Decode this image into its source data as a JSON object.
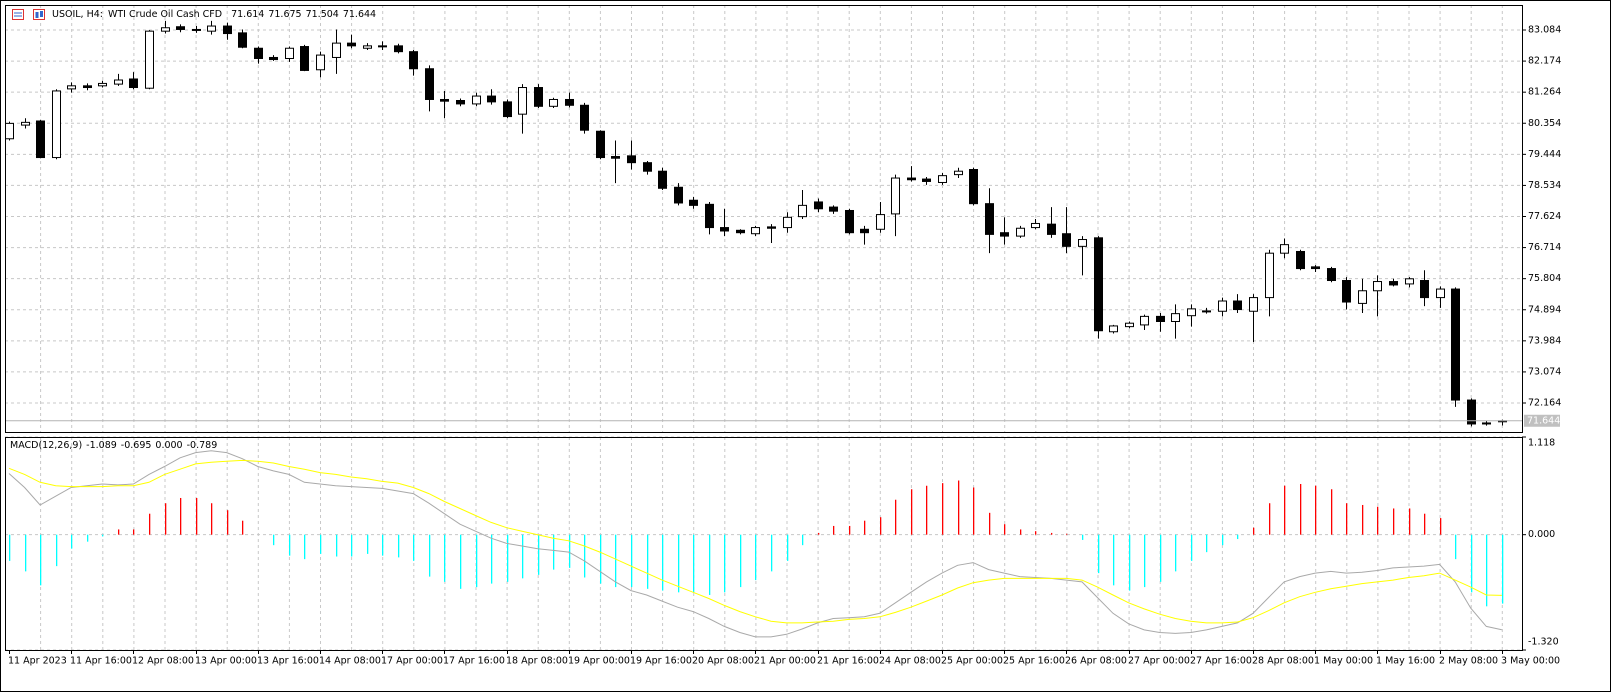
{
  "chart_data": [
    {
      "type": "candlestick",
      "title": "USOIL, H4:",
      "subtitle": "WTI Crude Oil Cash CFD",
      "categories": [
        "11 Apr 2023",
        null,
        null,
        null,
        "11 Apr 16:00",
        null,
        null,
        null,
        "12 Apr 08:00",
        null,
        null,
        null,
        "13 Apr 00:00",
        null,
        null,
        null,
        "13 Apr 16:00",
        null,
        null,
        null,
        "14 Apr 08:00",
        null,
        null,
        null,
        "17 Apr 00:00",
        null,
        null,
        null,
        "17 Apr 16:00",
        null,
        null,
        null,
        "18 Apr 08:00",
        null,
        null,
        null,
        "19 Apr 00:00",
        null,
        null,
        null,
        "19 Apr 16:00",
        null,
        null,
        null,
        "20 Apr 08:00",
        null,
        null,
        null,
        "21 Apr 00:00",
        null,
        null,
        null,
        "21 Apr 16:00",
        null,
        null,
        null,
        "24 Apr 08:00",
        null,
        null,
        null,
        "25 Apr 00:00",
        null,
        null,
        null,
        "25 Apr 16:00",
        null,
        null,
        null,
        "26 Apr 08:00",
        null,
        null,
        null,
        "27 Apr 00:00",
        null,
        null,
        null,
        "27 Apr 16:00",
        null,
        null,
        null,
        "28 Apr 08:00",
        null,
        null,
        null,
        "1 May 00:00",
        null,
        null,
        null,
        "1 May 16:00",
        null,
        null,
        null,
        "2 May 08:00",
        null,
        null,
        null,
        "3 May 00:00"
      ],
      "open": [
        79.9,
        80.3,
        80.42,
        79.35,
        81.36,
        81.45,
        81.45,
        81.5,
        81.65,
        81.38,
        83.05,
        83.18,
        83.1,
        83.05,
        83.2,
        83.0,
        82.55,
        82.28,
        82.25,
        82.6,
        81.92,
        82.28,
        82.7,
        82.55,
        82.6,
        82.62,
        82.45,
        81.95,
        81.05,
        81.02,
        80.92,
        81.15,
        80.98,
        80.62,
        81.4,
        80.85,
        81.05,
        80.88,
        80.12,
        79.38,
        79.4,
        79.2,
        78.95,
        78.48,
        78.1,
        77.98,
        77.3,
        77.22,
        77.12,
        77.32,
        77.3,
        77.62,
        78.05,
        77.9,
        77.8,
        77.25,
        77.25,
        77.7,
        78.75,
        78.72,
        78.62,
        78.85,
        79.0,
        78.0,
        77.15,
        77.05,
        77.3,
        77.4,
        77.12,
        76.75,
        77.0,
        74.25,
        74.4,
        74.45,
        74.7,
        74.55,
        74.72,
        74.86,
        74.85,
        75.15,
        74.85,
        75.25,
        76.55,
        76.6,
        76.15,
        76.1,
        75.75,
        75.08,
        75.45,
        75.72,
        75.65,
        75.75,
        75.25,
        75.5,
        72.25,
        71.58,
        71.614
      ],
      "high": [
        80.4,
        80.5,
        80.45,
        81.35,
        81.55,
        81.52,
        81.6,
        81.8,
        81.85,
        83.08,
        83.35,
        83.25,
        83.2,
        83.35,
        83.3,
        83.1,
        82.6,
        82.35,
        82.6,
        82.65,
        82.45,
        83.1,
        82.95,
        82.7,
        82.75,
        82.68,
        82.5,
        82.05,
        81.3,
        81.08,
        81.25,
        81.35,
        81.05,
        81.5,
        81.5,
        81.1,
        81.25,
        80.95,
        80.15,
        79.85,
        79.85,
        79.25,
        79.05,
        78.6,
        78.2,
        78.05,
        77.85,
        77.25,
        77.35,
        77.4,
        77.75,
        78.4,
        78.15,
        77.95,
        77.85,
        77.35,
        78.05,
        78.85,
        79.1,
        78.78,
        78.9,
        79.05,
        79.05,
        78.45,
        77.6,
        77.35,
        77.55,
        77.9,
        77.9,
        77.05,
        77.05,
        74.45,
        74.55,
        74.75,
        74.8,
        75.05,
        75.05,
        74.95,
        75.25,
        75.35,
        75.35,
        76.65,
        76.98,
        76.65,
        76.2,
        76.15,
        75.85,
        75.8,
        75.9,
        75.8,
        75.85,
        76.05,
        75.58,
        75.55,
        72.3,
        71.65,
        71.675
      ],
      "low": [
        79.85,
        80.2,
        79.33,
        79.3,
        81.25,
        81.32,
        81.4,
        81.45,
        81.35,
        81.35,
        82.98,
        83.02,
        83.0,
        82.95,
        82.8,
        82.55,
        82.1,
        82.18,
        82.15,
        81.88,
        81.7,
        81.8,
        82.55,
        82.5,
        82.5,
        82.4,
        81.75,
        80.7,
        80.5,
        80.85,
        80.85,
        80.9,
        80.5,
        80.05,
        80.8,
        80.8,
        80.82,
        80.05,
        79.3,
        78.6,
        79.0,
        78.85,
        78.4,
        77.95,
        77.85,
        77.1,
        77.05,
        77.1,
        77.05,
        76.85,
        77.15,
        77.55,
        77.75,
        77.7,
        77.1,
        76.8,
        77.15,
        77.05,
        78.65,
        78.55,
        78.55,
        78.75,
        77.95,
        76.55,
        76.8,
        77.0,
        77.25,
        77.0,
        76.55,
        75.9,
        74.05,
        74.2,
        74.35,
        74.3,
        74.25,
        74.05,
        74.4,
        74.78,
        74.7,
        74.8,
        73.95,
        74.7,
        76.4,
        76.05,
        76.0,
        75.7,
        74.9,
        74.8,
        74.7,
        75.58,
        75.55,
        75.0,
        74.95,
        72.05,
        71.48,
        71.5,
        71.504
      ],
      "close": [
        80.35,
        80.38,
        79.35,
        81.3,
        81.45,
        81.4,
        81.52,
        81.62,
        81.4,
        83.05,
        83.15,
        83.1,
        83.08,
        83.2,
        82.98,
        82.58,
        82.25,
        82.22,
        82.55,
        81.9,
        82.35,
        82.7,
        82.62,
        82.62,
        82.62,
        82.45,
        81.95,
        81.05,
        81.0,
        80.92,
        81.15,
        80.98,
        80.55,
        81.4,
        80.85,
        81.05,
        80.88,
        80.15,
        79.35,
        79.33,
        79.2,
        78.95,
        78.45,
        78.02,
        77.95,
        77.3,
        77.2,
        77.15,
        77.3,
        77.28,
        77.6,
        77.95,
        77.85,
        77.78,
        77.15,
        77.15,
        77.68,
        78.75,
        78.7,
        78.65,
        78.82,
        78.95,
        78.0,
        77.1,
        77.05,
        77.28,
        77.42,
        77.1,
        76.75,
        76.95,
        74.28,
        74.42,
        74.5,
        74.7,
        74.55,
        74.78,
        74.92,
        74.85,
        75.15,
        74.9,
        75.25,
        76.55,
        76.8,
        76.1,
        76.1,
        75.75,
        75.12,
        75.45,
        75.72,
        75.62,
        75.8,
        75.25,
        75.5,
        72.25,
        71.55,
        71.55,
        71.644
      ],
      "bull_color": "#ffffff",
      "bear_color": "#000000",
      "ylim": [
        71.315,
        83.816
      ],
      "yticks": [
        83.084,
        82.174,
        81.264,
        80.354,
        79.444,
        78.534,
        77.624,
        76.714,
        75.804,
        74.894,
        73.984,
        73.074,
        72.164
      ],
      "grid": true
    },
    {
      "type": "macd",
      "title": "MACD(12,26,9)",
      "series": [
        {
          "color": "#a9a9a9",
          "style": "line",
          "values": [
            0.7,
            0.54,
            0.34,
            0.44,
            0.54,
            0.56,
            0.58,
            0.57,
            0.58,
            0.69,
            0.78,
            0.88,
            0.94,
            0.96,
            0.94,
            0.87,
            0.78,
            0.73,
            0.69,
            0.6,
            0.58,
            0.56,
            0.55,
            0.54,
            0.53,
            0.5,
            0.47,
            0.36,
            0.24,
            0.12,
            0.04,
            -0.04,
            -0.1,
            -0.13,
            -0.16,
            -0.18,
            -0.2,
            -0.3,
            -0.42,
            -0.54,
            -0.64,
            -0.69,
            -0.76,
            -0.83,
            -0.88,
            -0.96,
            -1.05,
            -1.12,
            -1.17,
            -1.17,
            -1.14,
            -1.08,
            -1.01,
            -0.96,
            -0.95,
            -0.94,
            -0.9,
            -0.78,
            -0.66,
            -0.54,
            -0.44,
            -0.35,
            -0.32,
            -0.4,
            -0.44,
            -0.48,
            -0.49,
            -0.5,
            -0.52,
            -0.54,
            -0.72,
            -0.9,
            -1.02,
            -1.09,
            -1.12,
            -1.13,
            -1.12,
            -1.09,
            -1.05,
            -1.01,
            -0.9,
            -0.72,
            -0.54,
            -0.48,
            -0.44,
            -0.42,
            -0.44,
            -0.43,
            -0.41,
            -0.38,
            -0.37,
            -0.36,
            -0.34,
            -0.54,
            -0.84,
            -1.05,
            -1.089
          ]
        },
        {
          "color": "#ffff00",
          "style": "line",
          "values": [
            0.76,
            0.69,
            0.6,
            0.56,
            0.55,
            0.55,
            0.55,
            0.56,
            0.56,
            0.6,
            0.69,
            0.75,
            0.81,
            0.83,
            0.84,
            0.85,
            0.84,
            0.82,
            0.78,
            0.75,
            0.71,
            0.69,
            0.66,
            0.64,
            0.61,
            0.59,
            0.54,
            0.47,
            0.38,
            0.3,
            0.22,
            0.14,
            0.08,
            0.04,
            0,
            -0.04,
            -0.07,
            -0.13,
            -0.2,
            -0.28,
            -0.36,
            -0.44,
            -0.52,
            -0.59,
            -0.66,
            -0.73,
            -0.81,
            -0.88,
            -0.94,
            -0.99,
            -1.01,
            -1.01,
            -1.0,
            -0.99,
            -0.97,
            -0.96,
            -0.94,
            -0.89,
            -0.83,
            -0.76,
            -0.69,
            -0.61,
            -0.55,
            -0.52,
            -0.5,
            -0.5,
            -0.5,
            -0.5,
            -0.5,
            -0.52,
            -0.6,
            -0.69,
            -0.78,
            -0.85,
            -0.91,
            -0.96,
            -0.99,
            -1.01,
            -1.01,
            -1.0,
            -0.95,
            -0.87,
            -0.78,
            -0.71,
            -0.66,
            -0.62,
            -0.59,
            -0.56,
            -0.54,
            -0.52,
            -0.49,
            -0.47,
            -0.44,
            -0.52,
            -0.6,
            -0.69,
            -0.695
          ]
        },
        {
          "color": "#ff0000",
          "style": "histogram",
          "values": [
            0,
            0,
            0,
            0,
            0,
            0,
            0,
            0.06,
            0.06,
            0.24,
            0.36,
            0.42,
            0.42,
            0.36,
            0.28,
            0.16,
            0,
            0,
            0,
            0,
            0,
            0,
            0,
            0,
            0,
            0,
            0,
            0,
            0,
            0,
            0,
            0,
            0,
            0,
            0,
            0,
            0,
            0,
            0,
            0,
            0,
            0,
            0,
            0,
            0,
            0,
            0,
            0,
            0,
            0,
            0,
            0,
            0.02,
            0.1,
            0.1,
            0.16,
            0.2,
            0.4,
            0.52,
            0.56,
            0.59,
            0.62,
            0.54,
            0.25,
            0.12,
            0.06,
            0.04,
            0.02,
            0.01,
            0,
            0,
            0,
            0,
            0,
            0,
            0,
            0,
            0,
            0,
            0,
            0.08,
            0.36,
            0.56,
            0.58,
            0.56,
            0.52,
            0.36,
            0.34,
            0.32,
            0.3,
            0.3,
            0.24,
            0.19,
            0,
            0,
            0,
            0
          ],
          "value_labels": [
            null,
            null,
            null,
            null,
            null,
            null,
            null,
            null,
            null,
            null,
            null,
            null,
            null,
            null,
            null,
            null,
            null,
            null,
            null,
            null,
            null,
            null,
            null,
            null,
            null,
            null,
            null,
            null,
            null,
            null,
            null,
            null,
            null,
            null,
            null,
            null,
            null,
            null,
            null,
            null,
            null,
            null,
            null,
            null,
            null,
            null,
            null,
            null,
            null,
            null,
            null,
            null,
            null,
            null,
            null,
            null,
            null,
            null,
            null,
            null,
            null,
            null,
            null,
            null,
            null,
            null,
            null,
            null,
            null,
            null,
            null,
            null,
            null,
            null,
            null,
            null,
            null,
            null,
            null,
            null,
            null,
            null,
            null,
            null,
            null,
            null,
            null,
            null,
            null,
            null,
            null,
            null,
            null,
            null,
            null,
            null,
            "0.000"
          ]
        },
        {
          "color": "#00ffff",
          "style": "histogram",
          "values": [
            -0.3,
            -0.42,
            -0.58,
            -0.36,
            -0.16,
            -0.08,
            -0.02,
            0,
            0,
            0,
            0,
            0,
            0,
            0,
            0,
            0,
            0,
            -0.12,
            -0.24,
            -0.28,
            -0.22,
            -0.25,
            -0.25,
            -0.22,
            -0.24,
            -0.26,
            -0.3,
            -0.48,
            -0.54,
            -0.62,
            -0.6,
            -0.56,
            -0.54,
            -0.5,
            -0.46,
            -0.4,
            -0.38,
            -0.49,
            -0.56,
            -0.6,
            -0.6,
            -0.62,
            -0.64,
            -0.66,
            -0.66,
            -0.69,
            -0.66,
            -0.6,
            -0.52,
            -0.42,
            -0.3,
            -0.12,
            0,
            0,
            0,
            0,
            0,
            0,
            0,
            0,
            0,
            0,
            0,
            0,
            0,
            0,
            0,
            0,
            0,
            -0.06,
            -0.44,
            -0.58,
            -0.64,
            -0.6,
            -0.54,
            -0.42,
            -0.3,
            -0.2,
            -0.12,
            -0.05,
            0,
            0,
            0,
            0,
            0,
            0,
            0,
            0,
            0,
            0,
            0,
            0,
            0,
            -0.28,
            -0.66,
            -0.82,
            -0.789
          ]
        }
      ],
      "ylim": [
        -1.32,
        1.118
      ],
      "yticks": [
        1.118,
        {
          "value": 0,
          "label": "0.000"
        },
        {
          "value": -1.32,
          "label": "-1.320"
        }
      ],
      "grid": true
    }
  ]
}
